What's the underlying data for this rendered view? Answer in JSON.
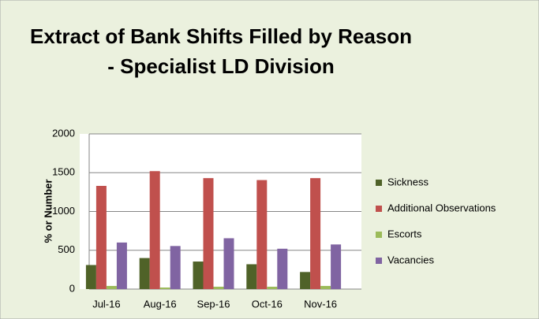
{
  "chart_data": {
    "type": "bar",
    "title": [
      "Extract of Bank Shifts Filled by Reason",
      "- Specialist LD Division"
    ],
    "y_label": "% or Number",
    "categories": [
      "Jul-16",
      "Aug-16",
      "Sep-16",
      "Oct-16",
      "Nov-16"
    ],
    "series": [
      {
        "name": "Sickness",
        "color": "#4f6228",
        "values": [
          310,
          400,
          355,
          320,
          220
        ]
      },
      {
        "name": "Additional Observations",
        "color": "#c0504d",
        "values": [
          1330,
          1520,
          1430,
          1405,
          1430
        ]
      },
      {
        "name": "Escorts",
        "color": "#9bbb59",
        "values": [
          40,
          20,
          30,
          30,
          40
        ]
      },
      {
        "name": "Vacancies",
        "color": "#8064a2",
        "values": [
          600,
          555,
          655,
          520,
          575
        ]
      }
    ],
    "ylim": [
      0,
      2000
    ],
    "yticks": [
      0,
      500,
      1000,
      1500,
      2000
    ],
    "grid": true,
    "legend": "right"
  }
}
